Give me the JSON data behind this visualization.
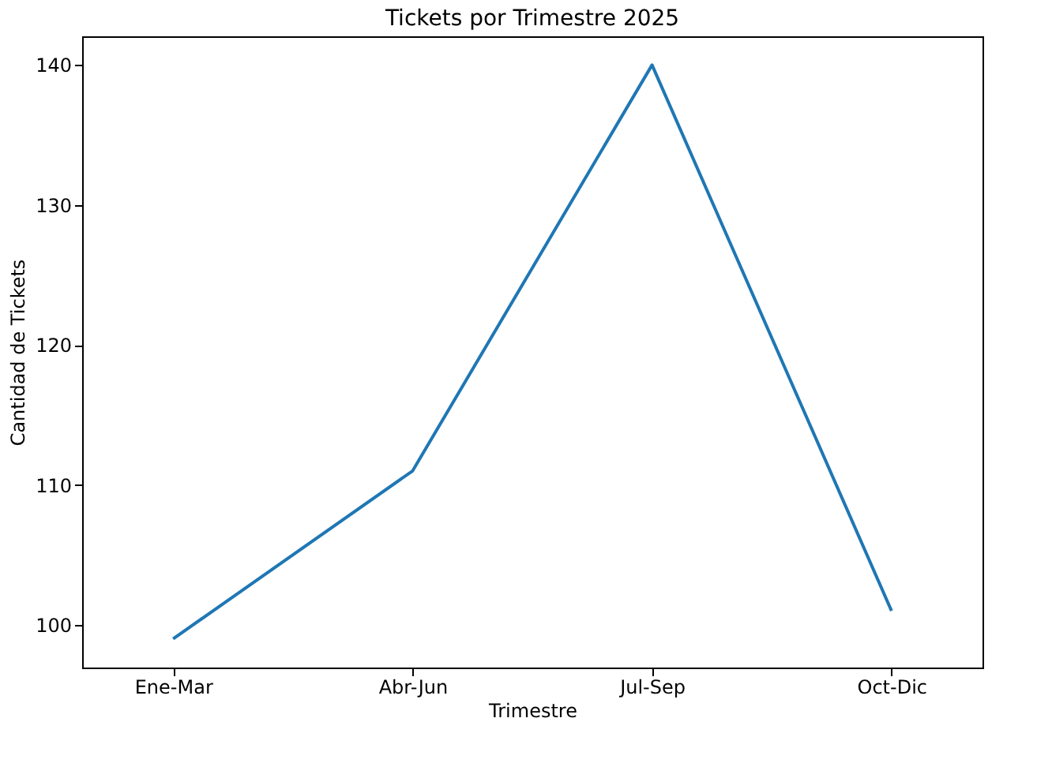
{
  "chart_data": {
    "type": "line",
    "title": "Tickets por Trimestre 2025",
    "xlabel": "Trimestre",
    "ylabel": "Cantidad de Tickets",
    "categories": [
      "Ene-Mar",
      "Abr-Jun",
      "Jul-Sep",
      "Oct-Dic"
    ],
    "series": [
      {
        "color": "#1f77b4",
        "values": [
          99,
          111,
          140,
          101
        ]
      }
    ],
    "ylim": [
      96.95,
      142.05
    ],
    "yticks": [
      100,
      110,
      120,
      130,
      140
    ],
    "grid": false,
    "marker": "none",
    "line_style": "solid"
  }
}
